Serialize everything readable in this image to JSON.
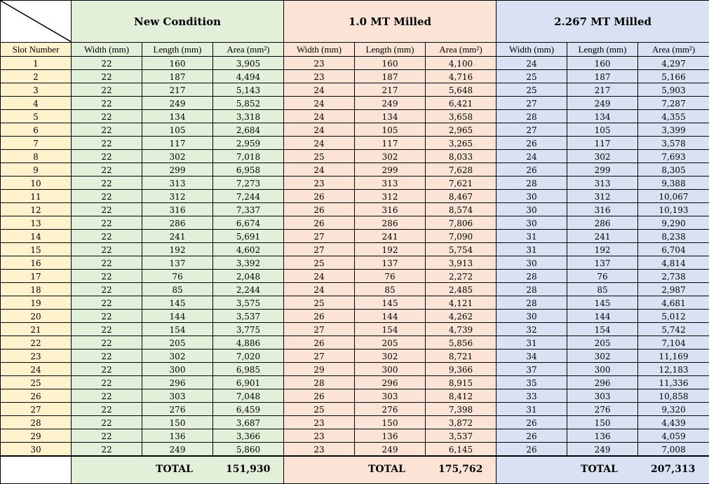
{
  "groups": {
    "new": "New Condition",
    "milled1": "1.0 MT Milled",
    "milled2": "2.267 MT Milled"
  },
  "columns": {
    "slot": "Slot Number",
    "width": "Width (mm)",
    "length": "Length (mm)",
    "area": "Area (mm²)"
  },
  "rows": [
    [
      "1",
      "22",
      "160",
      "3,905",
      "23",
      "160",
      "4,100",
      "24",
      "160",
      "4,297"
    ],
    [
      "2",
      "22",
      "187",
      "4,494",
      "23",
      "187",
      "4,716",
      "25",
      "187",
      "5,166"
    ],
    [
      "3",
      "22",
      "217",
      "5,143",
      "24",
      "217",
      "5,648",
      "25",
      "217",
      "5,903"
    ],
    [
      "4",
      "22",
      "249",
      "5,852",
      "24",
      "249",
      "6,421",
      "27",
      "249",
      "7,287"
    ],
    [
      "5",
      "22",
      "134",
      "3,318",
      "24",
      "134",
      "3,658",
      "28",
      "134",
      "4,355"
    ],
    [
      "6",
      "22",
      "105",
      "2,684",
      "24",
      "105",
      "2,965",
      "27",
      "105",
      "3,399"
    ],
    [
      "7",
      "22",
      "117",
      "2,959",
      "24",
      "117",
      "3,265",
      "26",
      "117",
      "3,578"
    ],
    [
      "8",
      "22",
      "302",
      "7,018",
      "25",
      "302",
      "8,033",
      "24",
      "302",
      "7,693"
    ],
    [
      "9",
      "22",
      "299",
      "6,958",
      "24",
      "299",
      "7,628",
      "26",
      "299",
      "8,305"
    ],
    [
      "10",
      "22",
      "313",
      "7,273",
      "23",
      "313",
      "7,621",
      "28",
      "313",
      "9,388"
    ],
    [
      "11",
      "22",
      "312",
      "7,244",
      "26",
      "312",
      "8,467",
      "30",
      "312",
      "10,067"
    ],
    [
      "12",
      "22",
      "316",
      "7,337",
      "26",
      "316",
      "8,574",
      "30",
      "316",
      "10,193"
    ],
    [
      "13",
      "22",
      "286",
      "6,674",
      "26",
      "286",
      "7,806",
      "30",
      "286",
      "9,290"
    ],
    [
      "14",
      "22",
      "241",
      "5,691",
      "27",
      "241",
      "7,090",
      "31",
      "241",
      "8,238"
    ],
    [
      "15",
      "22",
      "192",
      "4,602",
      "27",
      "192",
      "5,754",
      "31",
      "192",
      "6,704"
    ],
    [
      "16",
      "22",
      "137",
      "3,392",
      "25",
      "137",
      "3,913",
      "30",
      "137",
      "4,814"
    ],
    [
      "17",
      "22",
      "76",
      "2,048",
      "24",
      "76",
      "2,272",
      "28",
      "76",
      "2,738"
    ],
    [
      "18",
      "22",
      "85",
      "2,244",
      "24",
      "85",
      "2,485",
      "28",
      "85",
      "2,987"
    ],
    [
      "19",
      "22",
      "145",
      "3,575",
      "25",
      "145",
      "4,121",
      "28",
      "145",
      "4,681"
    ],
    [
      "20",
      "22",
      "144",
      "3,537",
      "26",
      "144",
      "4,262",
      "30",
      "144",
      "5,012"
    ],
    [
      "21",
      "22",
      "154",
      "3,775",
      "27",
      "154",
      "4,739",
      "32",
      "154",
      "5,742"
    ],
    [
      "22",
      "22",
      "205",
      "4,886",
      "26",
      "205",
      "5,856",
      "31",
      "205",
      "7,104"
    ],
    [
      "23",
      "22",
      "302",
      "7,020",
      "27",
      "302",
      "8,721",
      "34",
      "302",
      "11,169"
    ],
    [
      "24",
      "22",
      "300",
      "6,985",
      "29",
      "300",
      "9,366",
      "37",
      "300",
      "12,183"
    ],
    [
      "25",
      "22",
      "296",
      "6,901",
      "28",
      "296",
      "8,915",
      "35",
      "296",
      "11,336"
    ],
    [
      "26",
      "22",
      "303",
      "7,048",
      "26",
      "303",
      "8,412",
      "33",
      "303",
      "10,858"
    ],
    [
      "27",
      "22",
      "276",
      "6,459",
      "25",
      "276",
      "7,398",
      "31",
      "276",
      "9,320"
    ],
    [
      "28",
      "22",
      "150",
      "3,687",
      "23",
      "150",
      "3,872",
      "26",
      "150",
      "4,439"
    ],
    [
      "29",
      "22",
      "136",
      "3,366",
      "23",
      "136",
      "3,537",
      "26",
      "136",
      "4,059"
    ],
    [
      "30",
      "22",
      "249",
      "5,860",
      "23",
      "249",
      "6,145",
      "26",
      "249",
      "7,008"
    ]
  ],
  "totals": {
    "label": "TOTAL",
    "new": "151,930",
    "milled1": "175,762",
    "milled2": "207,313"
  },
  "colors": {
    "new": "#e2efd9",
    "milled1": "#fbe4d5",
    "milled2": "#d9e2f3",
    "slot": "#fff2cc"
  }
}
